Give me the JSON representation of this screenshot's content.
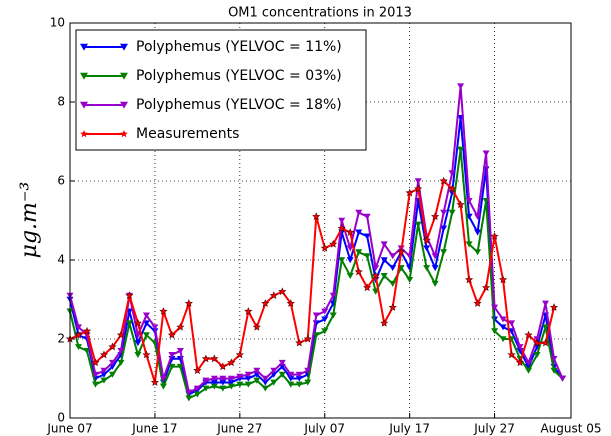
{
  "chart_data": {
    "type": "line",
    "title": "OM1 concentrations in 2013",
    "y_label": "μg.m⁻³",
    "x": [
      0,
      1,
      2,
      3,
      4,
      5,
      6,
      7,
      8,
      9,
      10,
      11,
      12,
      13,
      14,
      15,
      16,
      17,
      18,
      19,
      20,
      21,
      22,
      23,
      24,
      25,
      26,
      27,
      28,
      29,
      30,
      31,
      32,
      33,
      34,
      35,
      36,
      37,
      38,
      39,
      40,
      41,
      42,
      43,
      44,
      45,
      46,
      47,
      48,
      49,
      50,
      51,
      52,
      53,
      54,
      55,
      56,
      57,
      58
    ],
    "xlim": [
      0,
      59
    ],
    "xticks": [
      {
        "value": 0,
        "label": "June 07"
      },
      {
        "value": 10,
        "label": "June 17"
      },
      {
        "value": 20,
        "label": "June 27"
      },
      {
        "value": 30,
        "label": "July 07"
      },
      {
        "value": 40,
        "label": "July 17"
      },
      {
        "value": 50,
        "label": "July 27"
      },
      {
        "value": 59,
        "label": "August 05"
      }
    ],
    "ylim": [
      0,
      10
    ],
    "yticks": [
      0,
      2,
      4,
      6,
      8,
      10
    ],
    "grid": true,
    "legend": "upper left",
    "series": [
      {
        "name": "Polyphemus (YELVOC = 11%)",
        "color": "#0000ff",
        "marker": "triangle-down",
        "values": [
          3.0,
          2.1,
          2.0,
          1.0,
          1.1,
          1.3,
          1.6,
          2.7,
          1.9,
          2.4,
          2.2,
          0.9,
          1.5,
          1.5,
          0.6,
          0.7,
          0.9,
          0.9,
          0.9,
          0.9,
          1.0,
          1.0,
          1.1,
          0.9,
          1.1,
          1.3,
          1.0,
          1.0,
          1.1,
          2.4,
          2.5,
          2.9,
          4.7,
          4.0,
          4.7,
          4.6,
          3.5,
          4.0,
          3.8,
          4.2,
          3.8,
          5.5,
          4.3,
          3.8,
          4.8,
          5.7,
          7.6,
          5.1,
          4.7,
          6.3,
          2.5,
          2.3,
          2.2,
          1.7,
          1.3,
          1.8,
          2.6,
          1.3,
          1.0
        ]
      },
      {
        "name": "Polyphemus (YELVOC = 03%)",
        "color": "#007f00",
        "marker": "triangle-down",
        "values": [
          2.7,
          1.8,
          1.7,
          0.85,
          0.95,
          1.1,
          1.4,
          2.4,
          1.6,
          2.1,
          1.9,
          0.8,
          1.3,
          1.3,
          0.5,
          0.6,
          0.75,
          0.8,
          0.75,
          0.8,
          0.85,
          0.85,
          0.95,
          0.75,
          0.9,
          1.1,
          0.85,
          0.85,
          0.9,
          2.1,
          2.2,
          2.6,
          4.0,
          3.6,
          4.2,
          4.1,
          3.2,
          3.6,
          3.4,
          3.8,
          3.5,
          4.9,
          3.8,
          3.4,
          4.2,
          5.2,
          6.8,
          4.4,
          4.2,
          5.5,
          2.2,
          2.0,
          2.0,
          1.5,
          1.2,
          1.6,
          2.3,
          1.2,
          1.0
        ]
      },
      {
        "name": "Polyphemus (YELVOC = 18%)",
        "color": "#9900cc",
        "marker": "triangle-down",
        "values": [
          3.1,
          2.3,
          2.1,
          1.1,
          1.2,
          1.4,
          1.7,
          3.1,
          2.1,
          2.6,
          2.3,
          1.0,
          1.6,
          1.7,
          0.65,
          0.75,
          0.95,
          1.0,
          1.0,
          1.0,
          1.05,
          1.1,
          1.2,
          1.0,
          1.2,
          1.4,
          1.1,
          1.1,
          1.2,
          2.6,
          2.7,
          3.1,
          5.0,
          4.3,
          5.2,
          5.1,
          3.8,
          4.4,
          4.1,
          4.3,
          4.1,
          6.0,
          4.6,
          4.1,
          5.2,
          6.2,
          8.4,
          5.5,
          5.1,
          6.7,
          2.8,
          2.5,
          2.4,
          1.8,
          1.4,
          2.0,
          2.9,
          1.5,
          1.0
        ]
      },
      {
        "name": "Measurements",
        "color": "#ff0000",
        "marker": "star",
        "values": [
          2.0,
          2.1,
          2.2,
          1.4,
          1.6,
          1.8,
          2.1,
          3.1,
          2.4,
          1.6,
          0.9,
          2.7,
          2.1,
          2.3,
          2.9,
          1.2,
          1.5,
          1.5,
          1.3,
          1.4,
          1.6,
          2.7,
          2.3,
          2.9,
          3.1,
          3.2,
          2.9,
          1.9,
          2.0,
          5.1,
          4.3,
          4.4,
          4.8,
          4.7,
          3.7,
          3.3,
          3.6,
          2.4,
          2.8,
          4.2,
          5.7,
          5.8,
          4.5,
          5.1,
          6.0,
          5.8,
          5.4,
          3.5,
          2.9,
          3.3,
          4.6,
          3.5,
          1.6,
          1.4,
          2.1,
          1.9,
          1.9,
          2.8,
          null
        ]
      }
    ]
  }
}
